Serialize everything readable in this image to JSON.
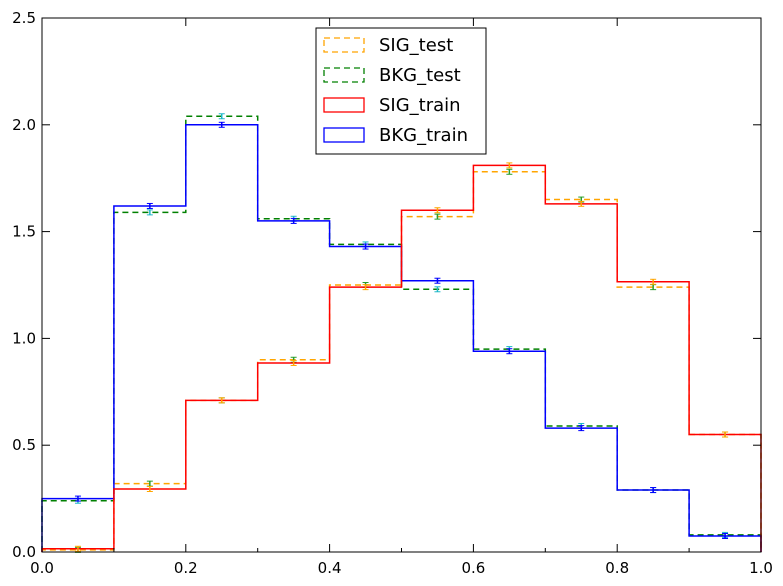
{
  "chart_data": {
    "type": "line",
    "title": "",
    "xlabel": "",
    "ylabel": "",
    "xlim": [
      0.0,
      1.0
    ],
    "ylim": [
      0.0,
      2.5
    ],
    "grid": false,
    "legend_position": "top-center",
    "bin_edges": [
      0.0,
      0.1,
      0.2,
      0.3,
      0.4,
      0.5,
      0.6,
      0.7,
      0.8,
      0.9,
      1.0
    ],
    "x_ticks": [
      0.0,
      0.2,
      0.4,
      0.6,
      0.8,
      1.0
    ],
    "x_tick_labels": [
      "0.0",
      "0.2",
      "0.4",
      "0.6",
      "0.8",
      "1.0"
    ],
    "y_ticks": [
      0.0,
      0.5,
      1.0,
      1.5,
      2.0,
      2.5
    ],
    "y_tick_labels": [
      "0.0",
      "0.5",
      "1.0",
      "1.5",
      "2.0",
      "2.5"
    ],
    "series": [
      {
        "name": "SIG_test",
        "color": "#ffa500",
        "style": "dashed",
        "values": [
          0.01,
          0.32,
          0.71,
          0.9,
          1.25,
          1.57,
          1.78,
          1.65,
          1.24,
          0.55
        ],
        "error_color": "#2a9d2a"
      },
      {
        "name": "BKG_test",
        "color": "#008000",
        "style": "dashed",
        "values": [
          0.24,
          1.59,
          2.04,
          1.56,
          1.44,
          1.23,
          0.95,
          0.59,
          0.29,
          0.08
        ],
        "error_color": "#1fb8c8"
      },
      {
        "name": "SIG_train",
        "color": "#ff0000",
        "style": "solid",
        "values": [
          0.015,
          0.295,
          0.71,
          0.885,
          1.24,
          1.6,
          1.81,
          1.63,
          1.265,
          0.55
        ],
        "error_color": "#ffa500"
      },
      {
        "name": "BKG_train",
        "color": "#0000ff",
        "style": "solid",
        "values": [
          0.25,
          1.62,
          2.0,
          1.55,
          1.43,
          1.27,
          0.94,
          0.58,
          0.29,
          0.075
        ],
        "error_color": "#0000ff"
      }
    ]
  }
}
